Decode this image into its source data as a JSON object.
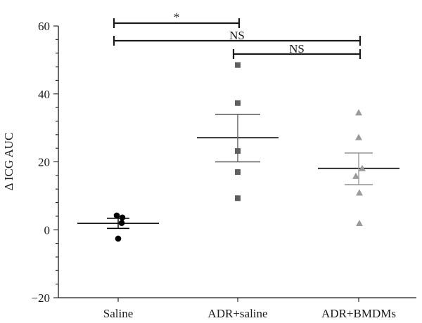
{
  "chart_data": {
    "type": "scatter",
    "title": "",
    "xlabel": "",
    "ylabel": "Δ ICG AUC",
    "ylim": [
      -20,
      60
    ],
    "yticks": [
      -20,
      0,
      20,
      40,
      60
    ],
    "grid": false,
    "categories": [
      "Saline",
      "ADR+saline",
      "ADR+BMDMs"
    ],
    "groups": [
      {
        "category": "Saline",
        "marker": "circle",
        "color": "#000000",
        "points": [
          4.2,
          3.6,
          2.0,
          -2.6
        ],
        "mean": 1.9,
        "sem_upper": 3.4,
        "sem_lower": 0.4
      },
      {
        "category": "ADR+saline",
        "marker": "square",
        "color": "#5f5f5f",
        "points": [
          48.5,
          37.3,
          23.2,
          17.0,
          9.3
        ],
        "mean": 27.1,
        "sem_upper": 34.0,
        "sem_lower": 20.0
      },
      {
        "category": "ADR+BMDMs",
        "marker": "triangle",
        "color": "#9b9b9b",
        "points": [
          34.5,
          27.2,
          18.1,
          15.8,
          10.9,
          1.9
        ],
        "mean": 18.1,
        "sem_upper": 22.6,
        "sem_lower": 13.3
      }
    ],
    "significance": [
      {
        "from": "Saline",
        "to": "ADR+saline",
        "label": "*",
        "level": 1
      },
      {
        "from": "Saline",
        "to": "ADR+BMDMs",
        "label": "NS",
        "level": 2
      },
      {
        "from": "ADR+saline",
        "to": "ADR+BMDMs",
        "label": "NS",
        "level": 3
      }
    ]
  }
}
